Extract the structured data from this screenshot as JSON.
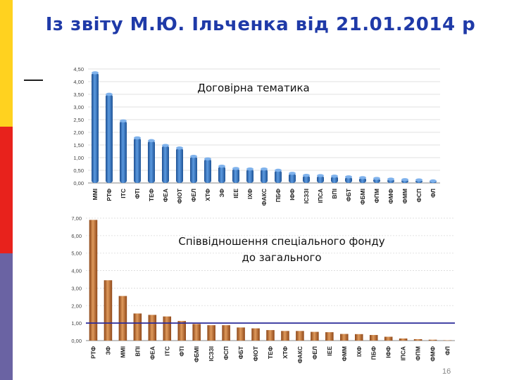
{
  "slide": {
    "title": "Із звіту М.Ю. Ільченка від 21.01.2014 р",
    "page_number": "16"
  },
  "colors": {
    "top_bars": "#2d6cb6",
    "bottom_bars": "#b0652a",
    "ref_line": "#2b2b9a"
  },
  "chart_data": [
    {
      "type": "bar",
      "title": "Договірна тематика",
      "categories": [
        "ММІ",
        "РТФ",
        "ІТС",
        "ФТІ",
        "ТЕФ",
        "ФЕА",
        "ФІОТ",
        "ФЕЛ",
        "ХТФ",
        "ЗФ",
        "ІЕЕ",
        "ІХФ",
        "ФАКС",
        "ПБФ",
        "ІФФ",
        "ІСЗЗІ",
        "ІПСА",
        "ВПІ",
        "ФБТ",
        "ФБМІ",
        "ФПМ",
        "ФМФ",
        "ФММ",
        "ФСП",
        "ФЛ"
      ],
      "values": [
        4.35,
        3.5,
        2.45,
        1.78,
        1.67,
        1.48,
        1.38,
        1.05,
        0.95,
        0.66,
        0.57,
        0.55,
        0.55,
        0.5,
        0.38,
        0.3,
        0.29,
        0.27,
        0.24,
        0.21,
        0.18,
        0.15,
        0.13,
        0.12,
        0.08
      ],
      "yticks": [
        "0,00",
        "0,50",
        "1,00",
        "1,50",
        "2,00",
        "2,50",
        "3,00",
        "3,50",
        "4,00",
        "4,50"
      ],
      "ylim": [
        0,
        4.5
      ]
    },
    {
      "type": "bar",
      "title_lines": [
        "Співвідношення спеціального фонду",
        "до загального"
      ],
      "categories": [
        "РТФ",
        "ЗФ",
        "ММІ",
        "ВПІ",
        "ФЕА",
        "ІТС",
        "ФТІ",
        "ФБМІ",
        "ІСЗЗІ",
        "ФСП",
        "ФБТ",
        "ФІОТ",
        "ТЕФ",
        "ХТФ",
        "ФАКС",
        "ФЕЛ",
        "ІЕЕ",
        "ФММ",
        "ІХФ",
        "ПБФ",
        "ІФФ",
        "ІПСА",
        "ФПМ",
        "ФМФ",
        "ФЛ"
      ],
      "values": [
        6.9,
        3.45,
        2.55,
        1.55,
        1.47,
        1.38,
        1.12,
        0.95,
        0.88,
        0.88,
        0.75,
        0.7,
        0.6,
        0.55,
        0.55,
        0.5,
        0.48,
        0.38,
        0.37,
        0.32,
        0.22,
        0.12,
        0.08,
        0.05,
        0.02
      ],
      "reference_line": 1.0,
      "yticks": [
        "0,00",
        "1,00",
        "2,00",
        "3,00",
        "4,00",
        "5,00",
        "6,00",
        "7,00"
      ],
      "ylim": [
        0,
        7
      ]
    }
  ]
}
